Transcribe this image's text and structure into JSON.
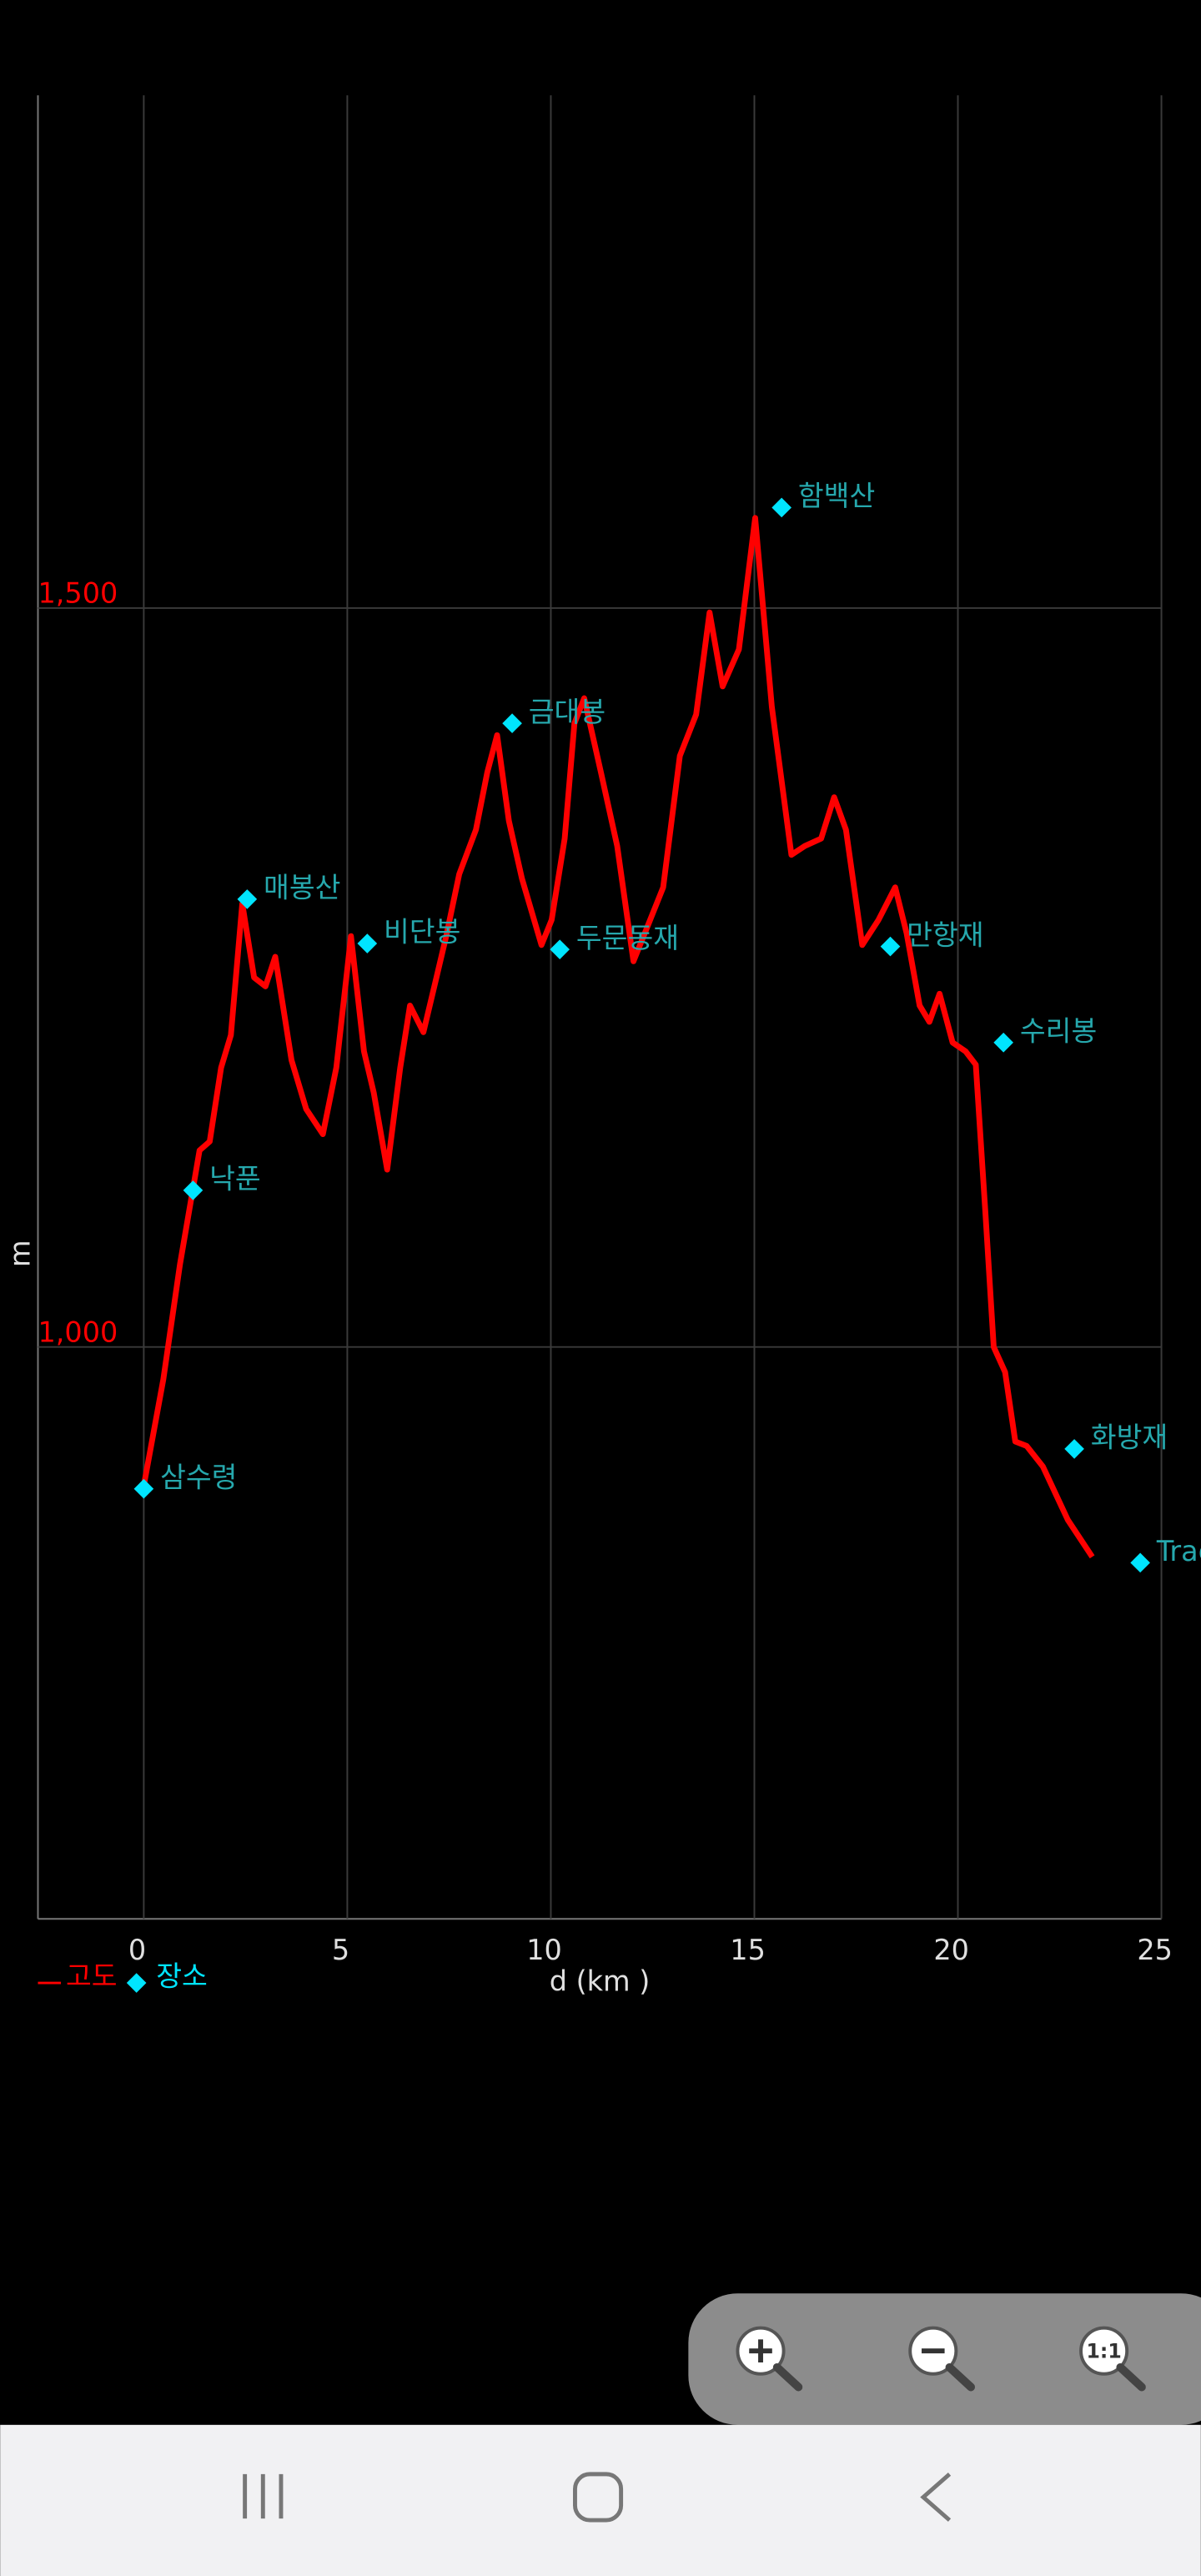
{
  "chart_data": {
    "type": "line",
    "x_label": "d (km )",
    "y_label": "m",
    "xlim": [
      -2.6,
      25
    ],
    "ylim": [
      613,
      1847
    ],
    "xticks": [
      0,
      5,
      10,
      15,
      20,
      25
    ],
    "yticks": [
      {
        "value": 1000,
        "label": "1,000"
      },
      {
        "value": 1500,
        "label": "1,500"
      }
    ],
    "grid": true,
    "legend": "bottom-left",
    "series": [
      {
        "name": "고도",
        "color": "#ff0000",
        "type": "line",
        "x": [
          0,
          0.48,
          0.89,
          1.37,
          1.62,
          1.9,
          2.14,
          2.42,
          2.71,
          2.99,
          3.23,
          3.63,
          3.99,
          4.4,
          4.73,
          5.09,
          5.41,
          5.65,
          5.98,
          6.3,
          6.54,
          6.87,
          7.19,
          7.43,
          7.75,
          8.16,
          8.44,
          8.68,
          8.97,
          9.29,
          9.77,
          10.02,
          10.34,
          10.58,
          10.82,
          11.23,
          11.63,
          12.03,
          12.44,
          12.76,
          13.17,
          13.57,
          13.9,
          14.22,
          14.62,
          15.02,
          15.43,
          15.91,
          16.24,
          16.64,
          16.96,
          17.25,
          17.65,
          18.05,
          18.46,
          18.74,
          19.06,
          19.3,
          19.55,
          19.87,
          20.19,
          20.44,
          20.68,
          20.88,
          21.16,
          21.41,
          21.69,
          22.09,
          22.7,
          23.3
        ],
        "values": [
          906,
          978,
          1056,
          1133,
          1139,
          1189,
          1211,
          1300,
          1250,
          1244,
          1264,
          1194,
          1161,
          1144,
          1189,
          1278,
          1200,
          1172,
          1120,
          1189,
          1231,
          1213,
          1250,
          1278,
          1320,
          1350,
          1389,
          1414,
          1356,
          1317,
          1272,
          1289,
          1344,
          1422,
          1439,
          1389,
          1339,
          1261,
          1289,
          1311,
          1400,
          1428,
          1497,
          1447,
          1472,
          1561,
          1433,
          1333,
          1339,
          1344,
          1372,
          1350,
          1272,
          1289,
          1311,
          1280,
          1231,
          1220,
          1239,
          1206,
          1200,
          1191,
          1089,
          1000,
          983,
          936,
          933,
          919,
          883,
          858
        ]
      },
      {
        "name": "장소",
        "color": "#00e5ff",
        "type": "scatter",
        "x": [
          0,
          1.21,
          2.54,
          5.49,
          9.05,
          10.22,
          15.67,
          18.34,
          21.12,
          22.86,
          24.48
        ],
        "values": [
          904,
          1106,
          1303,
          1273,
          1422,
          1269,
          1568,
          1271,
          1206,
          931,
          854
        ],
        "labels": [
          "삼수령",
          "낙푼",
          "매봉산",
          "비단봉",
          "금대봉",
          "두문동재",
          "함백산",
          "만항재",
          "수리봉",
          "화방재",
          "Trac"
        ]
      }
    ]
  },
  "ui": {
    "zoom_reset_label": "1:1"
  }
}
